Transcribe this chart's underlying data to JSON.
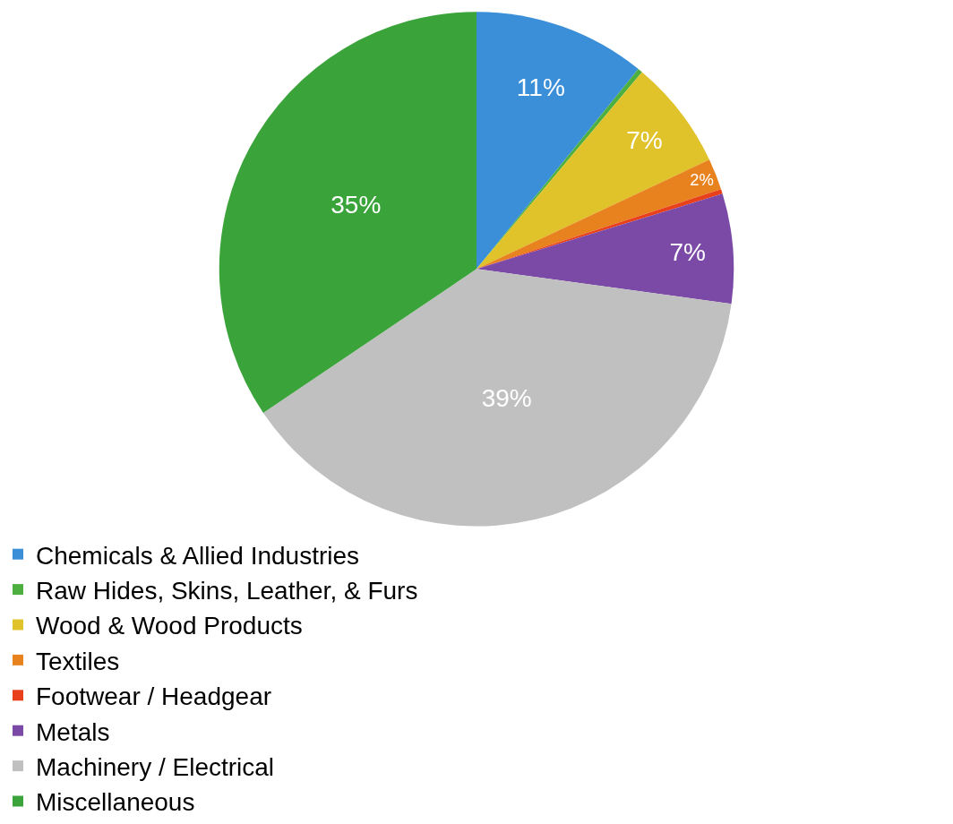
{
  "chart_data": {
    "type": "pie",
    "categories": [
      "Chemicals & Allied Industries",
      "Raw Hides, Skins, Leather, & Furs",
      "Wood & Wood Products",
      "Textiles",
      "Footwear / Headgear",
      "Metals",
      "Machinery / Electrical",
      "Miscellaneous"
    ],
    "values": [
      11,
      0.3,
      7,
      2,
      0.3,
      7,
      39,
      35
    ],
    "value_labels": [
      "11%",
      null,
      "7%",
      "2%",
      null,
      "7%",
      "39%",
      "35%"
    ],
    "colors": [
      "#3a8fd8",
      "#4caf3f",
      "#e0c22a",
      "#e8821e",
      "#e8401a",
      "#7b4aa6",
      "#c0c0c0",
      "#3aa33a"
    ],
    "legend": "bottom"
  }
}
